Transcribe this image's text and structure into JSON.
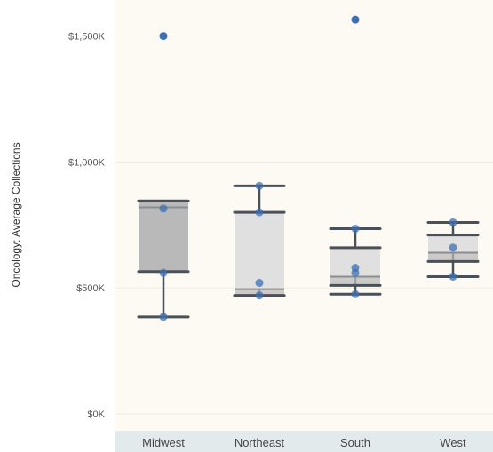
{
  "chart_data": {
    "type": "box",
    "title": "",
    "ylabel": "Oncology: Average Collections",
    "xlabel": "",
    "ylim": [
      0,
      1650
    ],
    "y_unit": "$K",
    "y_ticks": [
      {
        "value": 0,
        "label": "$0K"
      },
      {
        "value": 500,
        "label": "$500K"
      },
      {
        "value": 1000,
        "label": "$1,000K"
      },
      {
        "value": 1500,
        "label": "$1,500K"
      }
    ],
    "grid": true,
    "categories": [
      "Midwest",
      "Northeast",
      "South",
      "West"
    ],
    "boxes": [
      {
        "category": "Midwest",
        "whisker_low": 385,
        "q1": 565,
        "median": 820,
        "q3": 845,
        "whisker_high": 845
      },
      {
        "category": "Northeast",
        "whisker_low": 470,
        "q1": 470,
        "median": 495,
        "q3": 800,
        "whisker_high": 905
      },
      {
        "category": "South",
        "whisker_low": 475,
        "q1": 510,
        "median": 545,
        "q3": 660,
        "whisker_high": 735
      },
      {
        "category": "West",
        "whisker_low": 545,
        "q1": 605,
        "median": 640,
        "q3": 710,
        "whisker_high": 760
      }
    ],
    "points": [
      {
        "category": "Midwest",
        "value": 1500,
        "outlier": true
      },
      {
        "category": "Midwest",
        "value": 815
      },
      {
        "category": "Midwest",
        "value": 560
      },
      {
        "category": "Midwest",
        "value": 385
      },
      {
        "category": "Northeast",
        "value": 905
      },
      {
        "category": "Northeast",
        "value": 800
      },
      {
        "category": "Northeast",
        "value": 520
      },
      {
        "category": "Northeast",
        "value": 470
      },
      {
        "category": "South",
        "value": 1565,
        "outlier": true
      },
      {
        "category": "South",
        "value": 735
      },
      {
        "category": "South",
        "value": 580
      },
      {
        "category": "South",
        "value": 560
      },
      {
        "category": "South",
        "value": 475
      },
      {
        "category": "West",
        "value": 760
      },
      {
        "category": "West",
        "value": 660
      },
      {
        "category": "West",
        "value": 545
      }
    ],
    "colors": {
      "point": "#3e6fb3",
      "whisker": "#4a5058",
      "box_dark": "#b9b9b9",
      "box_light": "#e0e0e0",
      "plot_bg": "#fdfaf3",
      "axis_band": "#e3eaec",
      "grid": "#f1ece0"
    }
  }
}
